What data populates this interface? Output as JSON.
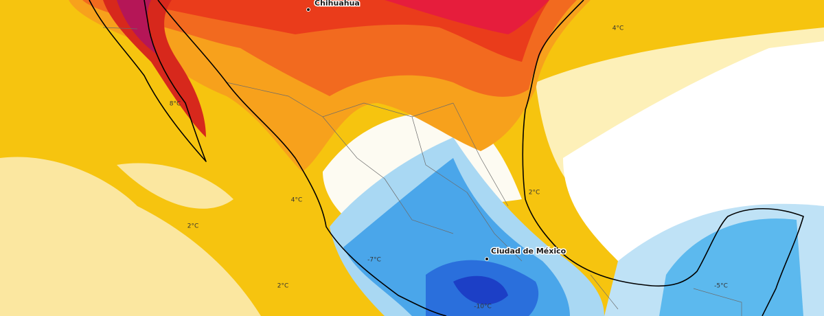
{
  "map": {
    "cities": [
      {
        "name": "Chihuahua"
      },
      {
        "name": "Ciudad de México"
      }
    ],
    "temperature_labels": [
      "4°C",
      "8°C",
      "2°C",
      "4°C",
      "2°C",
      "-7°C",
      "2°C",
      "-10°C",
      "-5°C"
    ]
  }
}
